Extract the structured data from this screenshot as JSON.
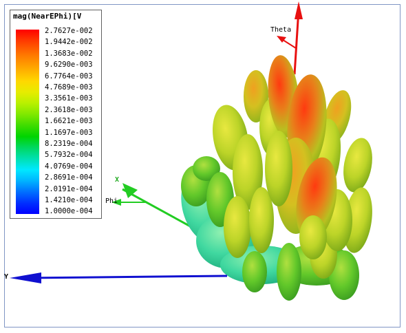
{
  "legend": {
    "title": "mag(NearEPhi)[V",
    "ticks": [
      "2.7627e-002",
      "1.9442e-002",
      "1.3683e-002",
      "9.6290e-003",
      "6.7764e-003",
      "4.7689e-003",
      "3.3561e-003",
      "2.3618e-003",
      "1.6621e-003",
      "1.1697e-003",
      "8.2319e-004",
      "5.7932e-004",
      "4.0769e-004",
      "2.8691e-004",
      "2.0191e-004",
      "1.4210e-004",
      "1.0000e-004"
    ]
  },
  "axes": {
    "theta": "Theta",
    "phi": "Phi",
    "x": "X",
    "y": "Y"
  },
  "colors": {
    "theta_axis": "#e81010",
    "x_axis": "#22cc22",
    "y_axis": "#1010d0",
    "frame": "#7f95c4"
  }
}
